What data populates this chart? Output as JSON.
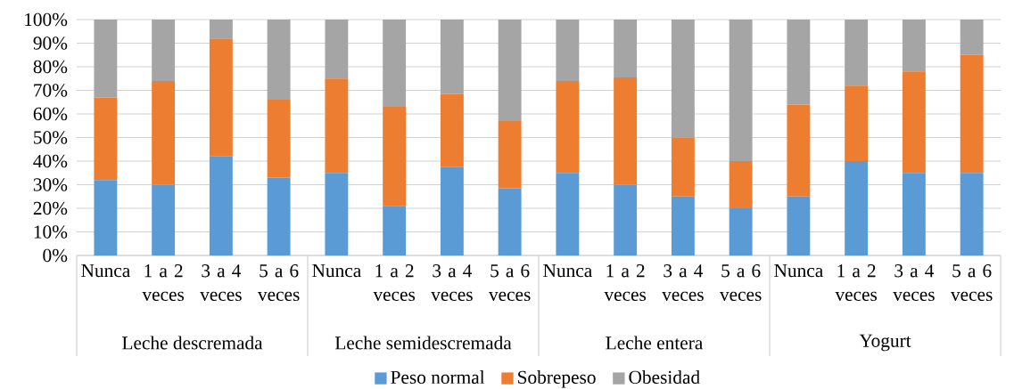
{
  "chart_data": {
    "type": "bar",
    "stacked": true,
    "categories": [
      "Nunca",
      "1 a 2 veces",
      "3 a 4 veces",
      "5 a 6 veces",
      "Nunca",
      "1 a 2 veces",
      "3 a 4 veces",
      "5 a 6 veces",
      "Nunca",
      "1 a 2 veces",
      "3 a 4 veces",
      "5 a 6 veces",
      "Nunca",
      "1 a 2 veces",
      "3 a 4 veces",
      "5 a 6 veces"
    ],
    "series": [
      {
        "name": "Peso normal",
        "color": "#5b9bd5",
        "values": [
          32,
          30,
          42,
          33,
          35,
          21,
          37.5,
          28.5,
          35,
          30,
          25,
          20,
          25,
          40,
          35,
          35
        ]
      },
      {
        "name": "Sobrepeso",
        "color": "#ed7d31",
        "values": [
          35,
          44,
          50,
          33,
          40,
          42,
          31,
          28.5,
          39,
          45.5,
          25,
          20,
          39,
          32,
          43,
          50
        ]
      },
      {
        "name": "Obesidad",
        "color": "#a5a5a5",
        "values": [
          33,
          26,
          8,
          34,
          25,
          37,
          31.5,
          43,
          26,
          24.5,
          50,
          60,
          36,
          28,
          22,
          15
        ]
      }
    ],
    "annotations": [
      "Leche descremada",
      "Leche semidescremada",
      "Leche entera",
      "Yogurt"
    ],
    "ylim": [
      0,
      100
    ],
    "yticks": [
      {
        "value": 0,
        "label": "0%"
      },
      {
        "value": 10,
        "label": "10%"
      },
      {
        "value": 20,
        "label": "20%"
      },
      {
        "value": 30,
        "label": "30%"
      },
      {
        "value": 40,
        "label": "40%"
      },
      {
        "value": 50,
        "label": "50%"
      },
      {
        "value": 60,
        "label": "60%"
      },
      {
        "value": 70,
        "label": "70%"
      },
      {
        "value": 80,
        "label": "80%"
      },
      {
        "value": 90,
        "label": "90%"
      },
      {
        "value": 100,
        "label": "100%"
      }
    ],
    "grid": "y",
    "legend": "bottom"
  }
}
